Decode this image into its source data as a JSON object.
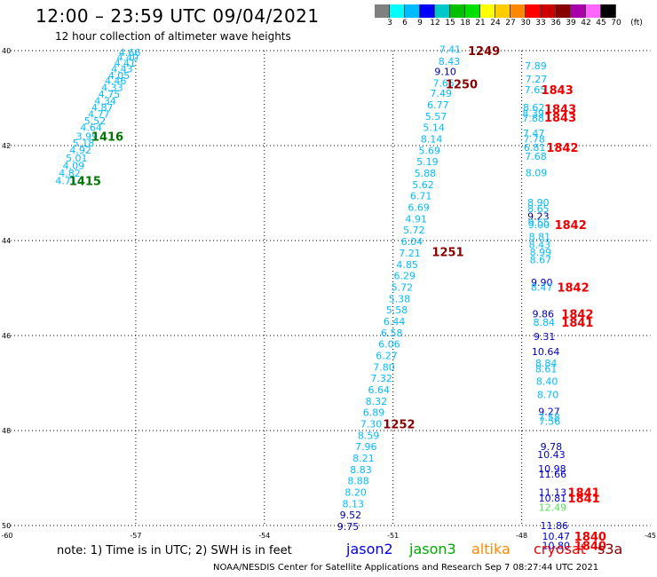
{
  "title": "12:00 – 23:59 UTC 09/04/2021",
  "subtitle": "12 hour collection of altimeter wave heights",
  "scale": {
    "unit": "(ft)",
    "labels": [
      "3",
      "6",
      "9",
      "12",
      "15",
      "18",
      "21",
      "24",
      "27",
      "30",
      "33",
      "36",
      "39",
      "42",
      "45",
      "70"
    ],
    "colors": [
      "#808080",
      "#00ffff",
      "#00bbff",
      "#0000ff",
      "#00c8c8",
      "#00c000",
      "#00e000",
      "#ffff00",
      "#ffcc00",
      "#ff8800",
      "#ff0000",
      "#cc0000",
      "#880000",
      "#aa00aa",
      "#ff66ff",
      "#000000"
    ]
  },
  "axes": {
    "lon_labels": [
      "-60",
      "-57",
      "-54",
      "-51",
      "-48",
      "-45"
    ],
    "lat_labels": [
      "40",
      "42",
      "44",
      "46",
      "48",
      "50"
    ]
  },
  "tracks": {
    "track_1415": [
      {
        "lon": -57.14,
        "lat": 40.04,
        "v": "4.66",
        "c": "#00bbff"
      },
      {
        "lon": -57.19,
        "lat": 40.14,
        "v": "4.40",
        "c": "#00bbff"
      },
      {
        "lon": -57.25,
        "lat": 40.26,
        "v": "4.41",
        "c": "#00bbff"
      },
      {
        "lon": -57.32,
        "lat": 40.38,
        "v": "4.43",
        "c": "#00bbff"
      },
      {
        "lon": -57.39,
        "lat": 40.52,
        "v": "4.05",
        "c": "#00bbff"
      },
      {
        "lon": -57.47,
        "lat": 40.64,
        "v": "4.46",
        "c": "#00bbff"
      },
      {
        "lon": -57.55,
        "lat": 40.78,
        "v": "4.33",
        "c": "#00bbff"
      },
      {
        "lon": -57.62,
        "lat": 40.92,
        "v": "4.75",
        "c": "#00bbff"
      },
      {
        "lon": -57.71,
        "lat": 41.06,
        "v": "4.34",
        "c": "#00bbff"
      },
      {
        "lon": -57.78,
        "lat": 41.2,
        "v": "4.87",
        "c": "#00bbff"
      },
      {
        "lon": -57.86,
        "lat": 41.34,
        "v": "4.77",
        "c": "#00bbff"
      },
      {
        "lon": -57.95,
        "lat": 41.48,
        "v": "5.52",
        "c": "#00bbff"
      },
      {
        "lon": -58.04,
        "lat": 41.62,
        "v": "4.64",
        "c": "#00bbff"
      },
      {
        "lon": -58.14,
        "lat": 41.8,
        "v": "3.99",
        "c": "#00bbff"
      },
      {
        "lon": -58.22,
        "lat": 41.94,
        "v": "5.18",
        "c": "#00bbff"
      },
      {
        "lon": -58.29,
        "lat": 42.09,
        "v": "4.92",
        "c": "#00bbff"
      },
      {
        "lon": -58.38,
        "lat": 42.26,
        "v": "5.01",
        "c": "#00bbff"
      },
      {
        "lon": -58.45,
        "lat": 42.42,
        "v": "4.09",
        "c": "#00bbff"
      },
      {
        "lon": -58.54,
        "lat": 42.58,
        "v": "4.82",
        "c": "#00bbff"
      },
      {
        "lon": -58.62,
        "lat": 42.74,
        "v": "4.71",
        "c": "#00bbff"
      }
    ],
    "track_1250": [
      {
        "lon": -49.67,
        "lat": 39.97,
        "v": "7.41",
        "c": "#00bbff"
      },
      {
        "lon": -49.69,
        "lat": 40.22,
        "v": "8.43",
        "c": "#00bbff"
      },
      {
        "lon": -49.78,
        "lat": 40.44,
        "v": "9.10",
        "c": "#0000aa"
      },
      {
        "lon": -49.82,
        "lat": 40.68,
        "v": "7.65",
        "c": "#00bbff"
      },
      {
        "lon": -49.88,
        "lat": 40.9,
        "v": "7.49",
        "c": "#00bbff"
      },
      {
        "lon": -49.95,
        "lat": 41.14,
        "v": "6.77",
        "c": "#00bbff"
      },
      {
        "lon": -50.0,
        "lat": 41.38,
        "v": "5.57",
        "c": "#00bbff"
      },
      {
        "lon": -50.05,
        "lat": 41.62,
        "v": "5.14",
        "c": "#00bbff"
      },
      {
        "lon": -50.1,
        "lat": 41.86,
        "v": "8.14",
        "c": "#00bbff"
      },
      {
        "lon": -50.15,
        "lat": 42.1,
        "v": "5.69",
        "c": "#00bbff"
      },
      {
        "lon": -50.2,
        "lat": 42.34,
        "v": "5.19",
        "c": "#00bbff"
      },
      {
        "lon": -50.25,
        "lat": 42.58,
        "v": "5.88",
        "c": "#00bbff"
      },
      {
        "lon": -50.3,
        "lat": 42.82,
        "v": "5.62",
        "c": "#00bbff"
      },
      {
        "lon": -50.35,
        "lat": 43.06,
        "v": "6.71",
        "c": "#00bbff"
      },
      {
        "lon": -50.4,
        "lat": 43.3,
        "v": "6.69",
        "c": "#00bbff"
      },
      {
        "lon": -50.46,
        "lat": 43.54,
        "v": "4.91",
        "c": "#00bbff"
      },
      {
        "lon": -50.51,
        "lat": 43.78,
        "v": "5.72",
        "c": "#00bbff"
      },
      {
        "lon": -50.56,
        "lat": 44.02,
        "v": "6.04",
        "c": "#00bbff"
      }
    ],
    "track_1252": [
      {
        "lon": -50.61,
        "lat": 44.26,
        "v": "7.21",
        "c": "#00bbff"
      },
      {
        "lon": -50.67,
        "lat": 44.5,
        "v": "4.85",
        "c": "#00bbff"
      },
      {
        "lon": -50.73,
        "lat": 44.74,
        "v": "6.29",
        "c": "#00bbff"
      },
      {
        "lon": -50.79,
        "lat": 44.98,
        "v": "5.72",
        "c": "#00bbff"
      },
      {
        "lon": -50.85,
        "lat": 45.22,
        "v": "5.38",
        "c": "#00bbff"
      },
      {
        "lon": -50.91,
        "lat": 45.46,
        "v": "5.58",
        "c": "#00bbff"
      },
      {
        "lon": -50.97,
        "lat": 45.7,
        "v": "6.44",
        "c": "#00bbff"
      },
      {
        "lon": -51.03,
        "lat": 45.94,
        "v": "6.58",
        "c": "#00bbff"
      },
      {
        "lon": -51.09,
        "lat": 46.18,
        "v": "6.06",
        "c": "#00bbff"
      },
      {
        "lon": -51.15,
        "lat": 46.42,
        "v": "6.27",
        "c": "#00bbff"
      },
      {
        "lon": -51.21,
        "lat": 46.66,
        "v": "7.80",
        "c": "#00bbff"
      },
      {
        "lon": -51.27,
        "lat": 46.9,
        "v": "7.32",
        "c": "#00bbff"
      },
      {
        "lon": -51.33,
        "lat": 47.14,
        "v": "6.64",
        "c": "#00bbff"
      },
      {
        "lon": -51.39,
        "lat": 47.38,
        "v": "8.32",
        "c": "#00bbff"
      },
      {
        "lon": -51.45,
        "lat": 47.62,
        "v": "6.89",
        "c": "#00bbff"
      },
      {
        "lon": -51.51,
        "lat": 47.86,
        "v": "7.30",
        "c": "#00bbff"
      },
      {
        "lon": -51.57,
        "lat": 48.1,
        "v": "8.59",
        "c": "#00bbff"
      },
      {
        "lon": -51.63,
        "lat": 48.34,
        "v": "7.96",
        "c": "#00bbff"
      },
      {
        "lon": -51.69,
        "lat": 48.58,
        "v": "8.21",
        "c": "#00bbff"
      },
      {
        "lon": -51.75,
        "lat": 48.82,
        "v": "8.83",
        "c": "#00bbff"
      },
      {
        "lon": -51.81,
        "lat": 49.06,
        "v": "8.88",
        "c": "#00bbff"
      },
      {
        "lon": -51.87,
        "lat": 49.3,
        "v": "8.20",
        "c": "#00bbff"
      },
      {
        "lon": -51.93,
        "lat": 49.54,
        "v": "8.13",
        "c": "#00bbff"
      },
      {
        "lon": -51.99,
        "lat": 49.78,
        "v": "9.52",
        "c": "#0000aa"
      },
      {
        "lon": -52.05,
        "lat": 50.02,
        "v": "9.75",
        "c": "#0000aa"
      }
    ],
    "track_1843": [
      {
        "lon": -47.67,
        "lat": 40.32,
        "v": "7.89",
        "c": "#00bbff"
      },
      {
        "lon": -47.66,
        "lat": 40.6,
        "v": "7.27",
        "c": "#00bbff"
      },
      {
        "lon": -47.68,
        "lat": 40.82,
        "v": "7.65",
        "c": "#00bbff"
      },
      {
        "lon": -47.72,
        "lat": 41.2,
        "v": "8.62",
        "c": "#00bbff"
      },
      {
        "lon": -47.73,
        "lat": 41.32,
        "v": "8.39",
        "c": "#00bbff"
      },
      {
        "lon": -47.73,
        "lat": 41.42,
        "v": "7.88",
        "c": "#00bbff"
      },
      {
        "lon": -47.72,
        "lat": 41.74,
        "v": "7.47",
        "c": "#00bbff"
      },
      {
        "lon": -47.71,
        "lat": 41.86,
        "v": "7.78",
        "c": "#00bbff"
      },
      {
        "lon": -47.7,
        "lat": 42.04,
        "v": "6.81",
        "c": "#00bbff"
      },
      {
        "lon": -47.67,
        "lat": 42.22,
        "v": "7.68",
        "c": "#00bbff"
      },
      {
        "lon": -47.66,
        "lat": 42.57,
        "v": "8.09",
        "c": "#00bbff"
      },
      {
        "lon": -47.61,
        "lat": 43.2,
        "v": "8.90",
        "c": "#00bbff"
      },
      {
        "lon": -47.61,
        "lat": 43.33,
        "v": "8.65",
        "c": "#00bbff"
      },
      {
        "lon": -47.61,
        "lat": 43.49,
        "v": "9.23",
        "c": "#000080"
      },
      {
        "lon": -47.6,
        "lat": 43.62,
        "v": "9.55",
        "c": "#00bbff"
      },
      {
        "lon": -47.6,
        "lat": 43.66,
        "v": "9.00",
        "c": "#00bbff"
      },
      {
        "lon": -47.58,
        "lat": 43.92,
        "v": "8.81",
        "c": "#00bbff"
      },
      {
        "lon": -47.58,
        "lat": 44.08,
        "v": "8.43",
        "c": "#00bbff"
      },
      {
        "lon": -47.56,
        "lat": 44.24,
        "v": "8.99",
        "c": "#00bbff"
      },
      {
        "lon": -47.56,
        "lat": 44.4,
        "v": "8.67",
        "c": "#00bbff"
      },
      {
        "lon": -47.53,
        "lat": 44.88,
        "v": "9.90",
        "c": "#0000cc"
      },
      {
        "lon": -47.53,
        "lat": 44.98,
        "v": "8.47",
        "c": "#00bbff"
      },
      {
        "lon": -47.5,
        "lat": 45.54,
        "v": "9.86",
        "c": "#0000aa"
      },
      {
        "lon": -47.48,
        "lat": 45.72,
        "v": "8.84",
        "c": "#00bbff"
      },
      {
        "lon": -47.47,
        "lat": 46.02,
        "v": "9.31",
        "c": "#0000cc"
      },
      {
        "lon": -47.44,
        "lat": 46.34,
        "v": "10.64",
        "c": "#0000cc"
      },
      {
        "lon": -47.43,
        "lat": 46.58,
        "v": "8.84",
        "c": "#00bbff"
      },
      {
        "lon": -47.43,
        "lat": 46.7,
        "v": "8.61",
        "c": "#00bbff"
      },
      {
        "lon": -47.41,
        "lat": 46.96,
        "v": "8.40",
        "c": "#00bbff"
      },
      {
        "lon": -47.39,
        "lat": 47.24,
        "v": "8.70",
        "c": "#00bbff"
      },
      {
        "lon": -47.36,
        "lat": 47.6,
        "v": "9.27",
        "c": "#0000cc"
      },
      {
        "lon": -47.36,
        "lat": 47.72,
        "v": "7.58",
        "c": "#00bbff"
      },
      {
        "lon": -47.35,
        "lat": 47.8,
        "v": "7.56",
        "c": "#00bbff"
      },
      {
        "lon": -47.31,
        "lat": 48.34,
        "v": "9.78",
        "c": "#0000aa"
      },
      {
        "lon": -47.31,
        "lat": 48.5,
        "v": "10.43",
        "c": "#0000cc"
      },
      {
        "lon": -47.29,
        "lat": 48.8,
        "v": "10.98",
        "c": "#0000cc"
      },
      {
        "lon": -47.28,
        "lat": 48.92,
        "v": "11.66",
        "c": "#0000cc"
      },
      {
        "lon": -47.28,
        "lat": 49.3,
        "v": "11.13",
        "c": "#0000cc"
      },
      {
        "lon": -47.28,
        "lat": 49.42,
        "v": "10.81",
        "c": "#0000cc"
      },
      {
        "lon": -47.28,
        "lat": 49.62,
        "v": "12.49",
        "c": "#55dd55"
      },
      {
        "lon": -47.24,
        "lat": 50.0,
        "v": "11.86",
        "c": "#0000cc"
      },
      {
        "lon": -47.2,
        "lat": 50.22,
        "v": "10.47",
        "c": "#0000cc"
      },
      {
        "lon": -47.2,
        "lat": 50.42,
        "v": "10.80",
        "c": "#0000cc"
      }
    ]
  },
  "cycle_labels": [
    {
      "lon": -48.88,
      "lat": 40.0,
      "v": "1249",
      "c": "#880000"
    },
    {
      "lon": -49.4,
      "lat": 40.7,
      "v": "1250",
      "c": "#880000"
    },
    {
      "lon": -49.72,
      "lat": 44.23,
      "v": "1251",
      "c": "#880000"
    },
    {
      "lon": -50.86,
      "lat": 47.86,
      "v": "1252",
      "c": "#880000"
    },
    {
      "lon": -57.66,
      "lat": 41.8,
      "v": "1416",
      "c": "#007700"
    },
    {
      "lon": -58.18,
      "lat": 42.74,
      "v": "1415",
      "c": "#007700"
    },
    {
      "lon": -47.17,
      "lat": 40.82,
      "v": "1843",
      "c": "#ee0000"
    },
    {
      "lon": -47.1,
      "lat": 41.22,
      "v": "1843",
      "c": "#ee0000"
    },
    {
      "lon": -47.1,
      "lat": 41.4,
      "v": "1843",
      "c": "#ee0000"
    },
    {
      "lon": -47.05,
      "lat": 42.04,
      "v": "1842",
      "c": "#ee0000"
    },
    {
      "lon": -46.86,
      "lat": 43.66,
      "v": "1842",
      "c": "#ee0000"
    },
    {
      "lon": -46.8,
      "lat": 44.98,
      "v": "1842",
      "c": "#ee0000"
    },
    {
      "lon": -46.7,
      "lat": 45.54,
      "v": "1842",
      "c": "#ee0000"
    },
    {
      "lon": -46.7,
      "lat": 45.72,
      "v": "1841",
      "c": "#ee0000"
    },
    {
      "lon": -46.55,
      "lat": 49.3,
      "v": "1841",
      "c": "#ee0000"
    },
    {
      "lon": -46.55,
      "lat": 49.42,
      "v": "1841",
      "c": "#ee0000"
    },
    {
      "lon": -46.4,
      "lat": 50.22,
      "v": "1840",
      "c": "#ee0000"
    },
    {
      "lon": -46.4,
      "lat": 50.42,
      "v": "1840",
      "c": "#ee0000"
    }
  ],
  "note": "note: 1) Time is in UTC; 2) SWH is in feet",
  "legend": [
    {
      "label": "jason2",
      "color": "#0000ee"
    },
    {
      "label": "jason3",
      "color": "#00aa00"
    },
    {
      "label": "altika",
      "color": "#ff8800"
    },
    {
      "label": "cryosat",
      "color": "#ee0000"
    },
    {
      "label": "s3a",
      "color": "#880000"
    }
  ],
  "credit": "NOAA/NESDIS Center for Satellite Applications and Research   Sep  7 08:27:44 UTC 2021"
}
